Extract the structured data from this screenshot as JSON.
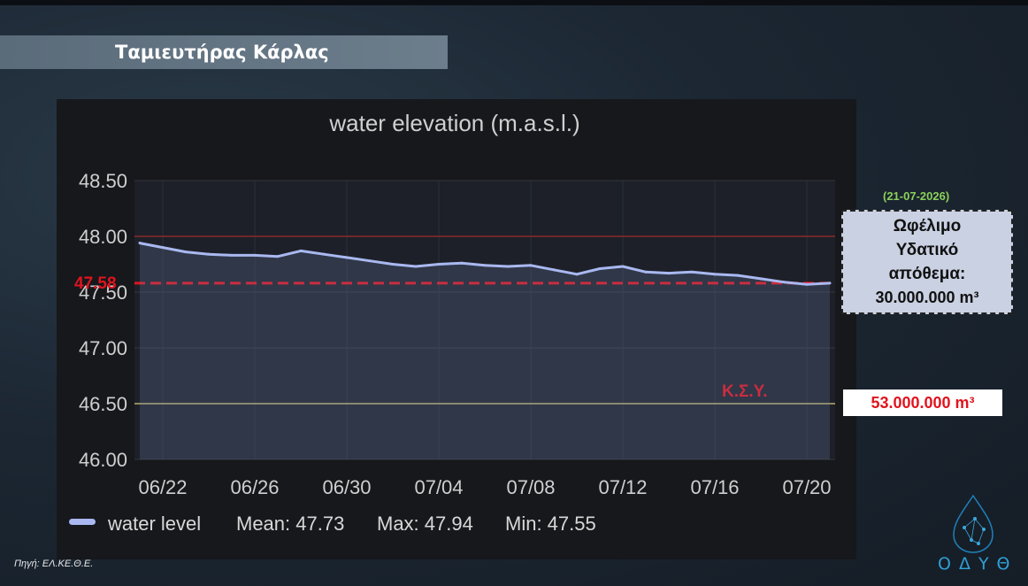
{
  "header": {
    "title": "Ταμιευτήρας Κάρλας"
  },
  "chart_data": {
    "type": "line",
    "title": "water elevation (m.a.s.l.)",
    "ylim": [
      46.0,
      48.5
    ],
    "y_ticks": [
      "46.00",
      "46.50",
      "47.00",
      "47.50",
      "48.00",
      "48.50"
    ],
    "x_ticks": [
      "06/22",
      "06/26",
      "06/30",
      "07/04",
      "07/08",
      "07/12",
      "07/16",
      "07/20"
    ],
    "x": [
      "06/21",
      "06/22",
      "06/23",
      "06/24",
      "06/25",
      "06/26",
      "06/27",
      "06/28",
      "06/29",
      "06/30",
      "07/01",
      "07/02",
      "07/03",
      "07/04",
      "07/05",
      "07/06",
      "07/07",
      "07/08",
      "07/09",
      "07/10",
      "07/11",
      "07/12",
      "07/13",
      "07/14",
      "07/15",
      "07/16",
      "07/17",
      "07/18",
      "07/19",
      "07/20",
      "07/21"
    ],
    "series": [
      {
        "name": "water level",
        "color": "#a9b8f0",
        "values": [
          47.94,
          47.9,
          47.86,
          47.84,
          47.83,
          47.83,
          47.82,
          47.87,
          47.84,
          47.81,
          47.78,
          47.75,
          47.73,
          47.75,
          47.76,
          47.74,
          47.73,
          47.74,
          47.7,
          47.66,
          47.71,
          47.73,
          47.68,
          47.67,
          47.68,
          47.66,
          47.65,
          47.62,
          47.59,
          47.57,
          47.58
        ]
      }
    ],
    "legend": {
      "position": "bottom-left",
      "series_label": "water level",
      "mean_label": "Mean: 47.73",
      "max_label": "Max: 47.94",
      "min_label": "Min: 47.55"
    },
    "reference_lines": [
      {
        "y": 48.0,
        "color": "#8a2a2a",
        "style": "solid"
      },
      {
        "y": 47.58,
        "color": "#e0141e",
        "style": "dashed",
        "label": "47.58"
      },
      {
        "y": 46.5,
        "color": "#b8ac6c",
        "style": "solid",
        "label": "Κ.Σ.Υ."
      }
    ]
  },
  "annotations": {
    "date": "(21-07-2026)",
    "storage_line1": "Ωφέλιμο",
    "storage_line2": "Υδατικό",
    "storage_line3": "απόθεμα:",
    "storage_volume": "30.000.000 m³",
    "ksy_volume": "53.000.000 m³"
  },
  "footer": {
    "source": "Πηγή: ΕΛ.ΚΕ.Θ.Ε.",
    "logo_text": "ΟΔΥΘ"
  }
}
